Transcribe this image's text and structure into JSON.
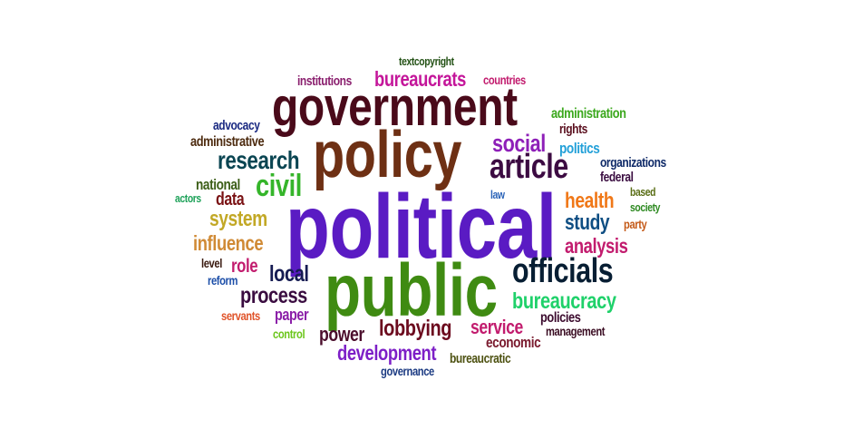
{
  "words": [
    {
      "text": "political",
      "color": "#5a1bc3",
      "cls": "political"
    },
    {
      "text": "public",
      "color": "#3f8b12",
      "cls": "public"
    },
    {
      "text": "policy",
      "color": "#6e3014",
      "cls": "policy"
    },
    {
      "text": "government",
      "color": "#4a0a1a",
      "cls": "government"
    },
    {
      "text": "officials",
      "color": "#071e33",
      "cls": "officials"
    },
    {
      "text": "article",
      "color": "#3c0b42",
      "cls": "article"
    },
    {
      "text": "civil",
      "color": "#35b52a",
      "cls": "civil"
    },
    {
      "text": "research",
      "color": "#0a4552",
      "cls": "research"
    },
    {
      "text": "social",
      "color": "#8e1fb8",
      "cls": "social"
    },
    {
      "text": "bureaucrats",
      "color": "#c4169a",
      "cls": "bureaucrats"
    },
    {
      "text": "bureaucracy",
      "color": "#1fd16a",
      "cls": "bureaucracy"
    },
    {
      "text": "lobbying",
      "color": "#6c0a1e",
      "cls": "lobbying"
    },
    {
      "text": "local",
      "color": "#151b52",
      "cls": "local"
    },
    {
      "text": "process",
      "color": "#3a0c40",
      "cls": "process"
    },
    {
      "text": "system",
      "color": "#c2a826",
      "cls": "system"
    },
    {
      "text": "influence",
      "color": "#d08a35",
      "cls": "influence"
    },
    {
      "text": "health",
      "color": "#f07818",
      "cls": "health"
    },
    {
      "text": "study",
      "color": "#0e4e83",
      "cls": "study"
    },
    {
      "text": "analysis",
      "color": "#c21c6e",
      "cls": "analysis"
    },
    {
      "text": "development",
      "color": "#7d1fc7",
      "cls": "development"
    },
    {
      "text": "service",
      "color": "#c21c6e",
      "cls": "service"
    },
    {
      "text": "power",
      "color": "#4b0e2c",
      "cls": "power"
    },
    {
      "text": "data",
      "color": "#7a1214",
      "cls": "data"
    },
    {
      "text": "role",
      "color": "#c21c6e",
      "cls": "role"
    },
    {
      "text": "national",
      "color": "#3c5e18",
      "cls": "national"
    },
    {
      "text": "paper",
      "color": "#8b1fa8",
      "cls": "paper"
    },
    {
      "text": "economic",
      "color": "#7a1a2e",
      "cls": "economic"
    },
    {
      "text": "policies",
      "color": "#3c0b2e",
      "cls": "policies"
    },
    {
      "text": "politics",
      "color": "#22a0d8",
      "cls": "politics"
    },
    {
      "text": "administrative",
      "color": "#4e2c10",
      "cls": "administrative"
    },
    {
      "text": "administration",
      "color": "#3ca81e",
      "cls": "administration"
    },
    {
      "text": "organizations",
      "color": "#0f2a68",
      "cls": "organizations"
    },
    {
      "text": "advocacy",
      "color": "#1b2a82",
      "cls": "advocacy"
    },
    {
      "text": "institutions",
      "color": "#8a1f6e",
      "cls": "institutions"
    },
    {
      "text": "countries",
      "color": "#c21c6e",
      "cls": "countries"
    },
    {
      "text": "textcopyright",
      "color": "#245216",
      "cls": "textcopyright"
    },
    {
      "text": "rights",
      "color": "#5a0f1e",
      "cls": "rights"
    },
    {
      "text": "federal",
      "color": "#3a0c40",
      "cls": "federal"
    },
    {
      "text": "law",
      "color": "#2a63b8",
      "cls": "law"
    },
    {
      "text": "based",
      "color": "#5a6e16",
      "cls": "based"
    },
    {
      "text": "society",
      "color": "#2e8a22",
      "cls": "society"
    },
    {
      "text": "party",
      "color": "#c45a18",
      "cls": "party"
    },
    {
      "text": "actors",
      "color": "#1fa25a",
      "cls": "actors"
    },
    {
      "text": "level",
      "color": "#3a1a10",
      "cls": "level"
    },
    {
      "text": "reform",
      "color": "#1c4ea8",
      "cls": "reform"
    },
    {
      "text": "servants",
      "color": "#e0542a",
      "cls": "servants"
    },
    {
      "text": "control",
      "color": "#6cc61c",
      "cls": "control"
    },
    {
      "text": "management",
      "color": "#3a0c22",
      "cls": "management"
    },
    {
      "text": "bureaucratic",
      "color": "#4e5212",
      "cls": "bureaucratic"
    },
    {
      "text": "governance",
      "color": "#1b3a82",
      "cls": "governance"
    }
  ]
}
